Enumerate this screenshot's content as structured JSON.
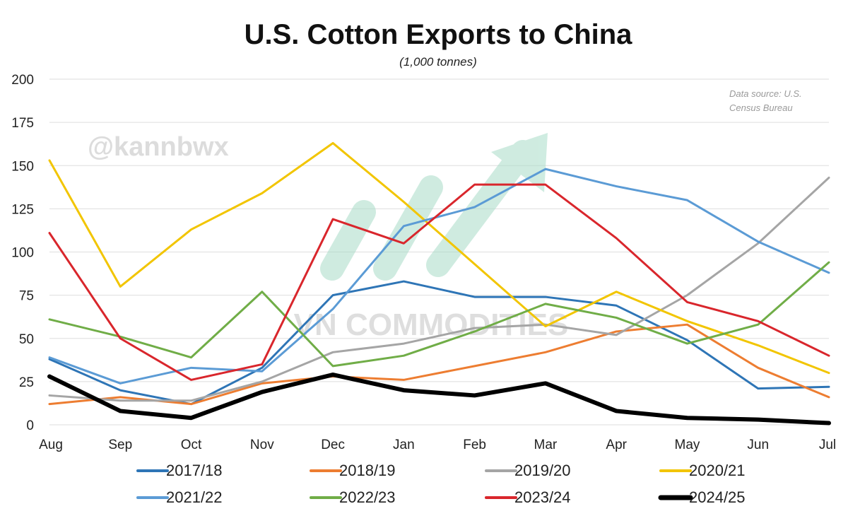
{
  "chart_data": {
    "type": "line",
    "title": "U.S. Cotton Exports to China",
    "subtitle": "(1,000 tonnes)",
    "source_note": [
      "Data source: U.S.",
      "Census Bureau"
    ],
    "watermarks": {
      "handle": "@kannbwx",
      "brand": "VN COMMODITIES"
    },
    "categories": [
      "Aug",
      "Sep",
      "Oct",
      "Nov",
      "Dec",
      "Jan",
      "Feb",
      "Mar",
      "Apr",
      "May",
      "Jun",
      "Jul"
    ],
    "ylim": [
      0,
      200
    ],
    "yticks": [
      0,
      25,
      50,
      75,
      100,
      125,
      150,
      175,
      200
    ],
    "grid": true,
    "legend_position": "bottom",
    "series": [
      {
        "name": "2017/18",
        "color": "#2e75b6",
        "width": 3,
        "values": [
          38,
          20,
          12,
          33,
          75,
          83,
          74,
          74,
          69,
          49,
          21,
          22
        ]
      },
      {
        "name": "2018/19",
        "color": "#ed7d31",
        "width": 3,
        "values": [
          12,
          16,
          12,
          24,
          28,
          26,
          34,
          42,
          54,
          58,
          33,
          16
        ]
      },
      {
        "name": "2019/20",
        "color": "#a5a5a5",
        "width": 3,
        "values": [
          17,
          14,
          14,
          25,
          42,
          47,
          56,
          58,
          52,
          75,
          105,
          143
        ]
      },
      {
        "name": "2020/21",
        "color": "#f2c500",
        "width": 3,
        "values": [
          153,
          80,
          113,
          134,
          163,
          129,
          93,
          57,
          77,
          60,
          46,
          30
        ]
      },
      {
        "name": "2021/22",
        "color": "#5b9bd5",
        "width": 3,
        "values": [
          39,
          24,
          33,
          31,
          67,
          115,
          126,
          148,
          138,
          130,
          106,
          88
        ]
      },
      {
        "name": "2022/23",
        "color": "#70ad47",
        "width": 3,
        "values": [
          61,
          51,
          39,
          77,
          34,
          40,
          54,
          70,
          62,
          47,
          58,
          94
        ]
      },
      {
        "name": "2023/24",
        "color": "#d9262c",
        "width": 3,
        "values": [
          111,
          50,
          26,
          35,
          119,
          105,
          139,
          139,
          108,
          71,
          60,
          40
        ]
      },
      {
        "name": "2024/25",
        "color": "#000000",
        "width": 6,
        "values": [
          28,
          8,
          4,
          19,
          29,
          20,
          17,
          24,
          8,
          4,
          3,
          1
        ]
      }
    ]
  }
}
